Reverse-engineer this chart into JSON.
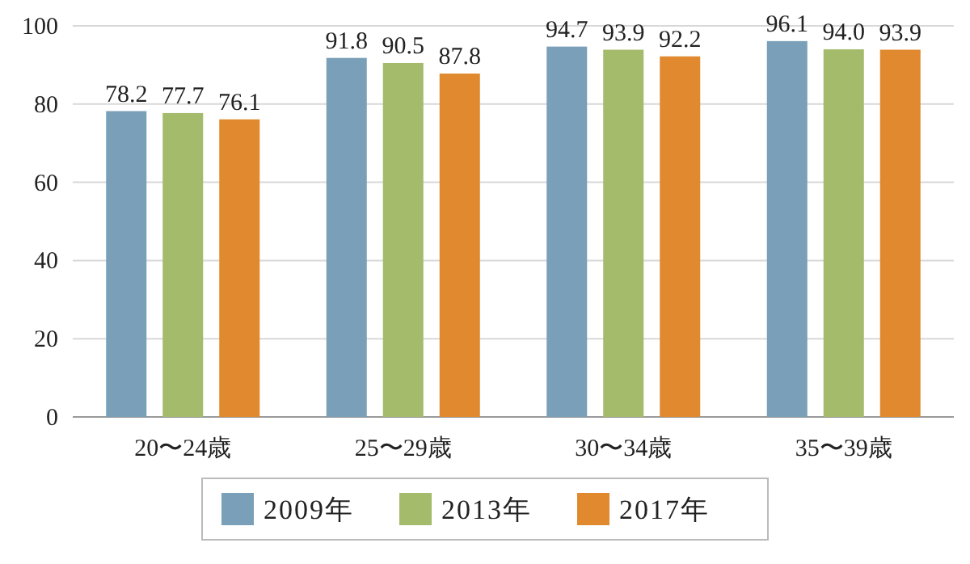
{
  "chart_data": {
    "type": "bar",
    "categories": [
      "20〜24歳",
      "25〜29歳",
      "30〜34歳",
      "35〜39歳"
    ],
    "series": [
      {
        "name": "2009年",
        "color": "#7a9fb8",
        "values": [
          78.2,
          91.8,
          94.7,
          96.1
        ],
        "value_labels": [
          "78.2",
          "91.8",
          "94.7",
          "96.1"
        ]
      },
      {
        "name": "2013年",
        "color": "#a3bb6a",
        "values": [
          77.7,
          90.5,
          93.9,
          94.0
        ],
        "value_labels": [
          "77.7",
          "90.5",
          "93.9",
          "94.0"
        ]
      },
      {
        "name": "2017年",
        "color": "#e0892e",
        "values": [
          76.1,
          87.8,
          92.2,
          93.9
        ],
        "value_labels": [
          "76.1",
          "87.8",
          "92.2",
          "93.9"
        ]
      }
    ],
    "ylim": [
      0,
      100
    ],
    "yticks": [
      0,
      20,
      40,
      60,
      80,
      100
    ],
    "grid": "y",
    "legend": "bottom"
  }
}
